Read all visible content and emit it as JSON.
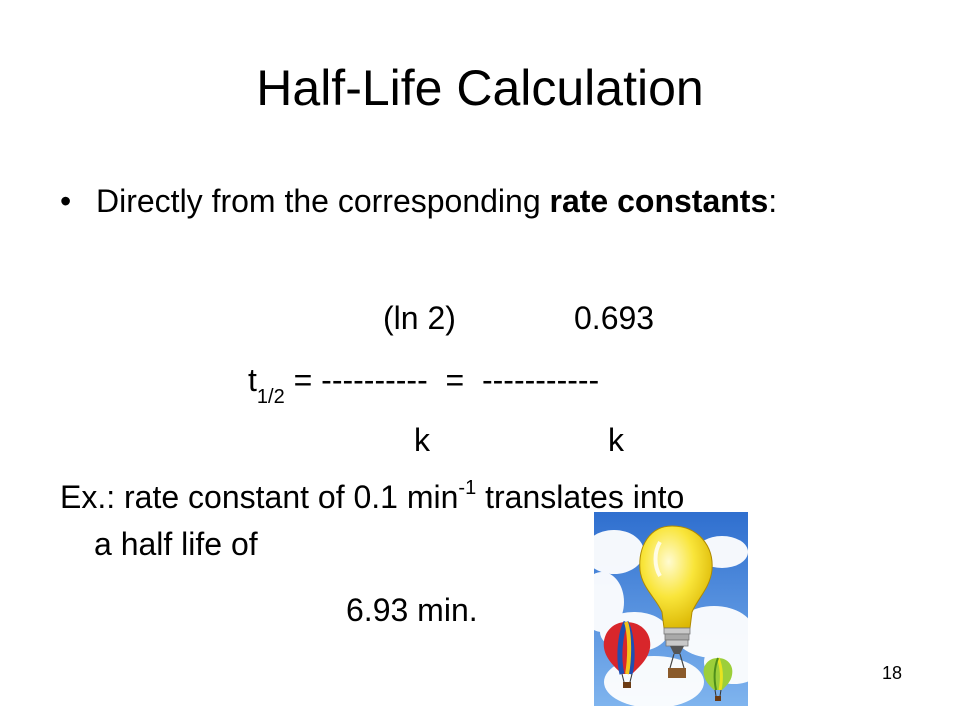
{
  "slide": {
    "title": "Half-Life Calculation",
    "bullet": {
      "marker": "•",
      "text_before": "Directly from the corresponding ",
      "text_bold": "rate constants",
      "text_after": ":"
    },
    "equation": {
      "numerator_1": "(ln 2)",
      "numerator_2": "0.693",
      "lhs_t": "t",
      "lhs_sub": "1/2",
      "lhs_rest": " = ----------  =  -----------",
      "denominator_1": "k",
      "denominator_2": "k"
    },
    "example": {
      "text_before": "Ex.: rate constant of 0.1 min",
      "superscript": "-1",
      "text_after": " translates into",
      "text_cont": "a half life of"
    },
    "answer": "6.93 min.",
    "page_number": "18"
  },
  "colors": {
    "sky": "#3a7fd6",
    "cloud": "#ffffff",
    "bulb": "#f7e12a",
    "balloon_red": "#d8262b",
    "balloon_green": "#9ccf3a"
  },
  "icons": {
    "clipart": "lightbulb-balloon-clipart"
  }
}
